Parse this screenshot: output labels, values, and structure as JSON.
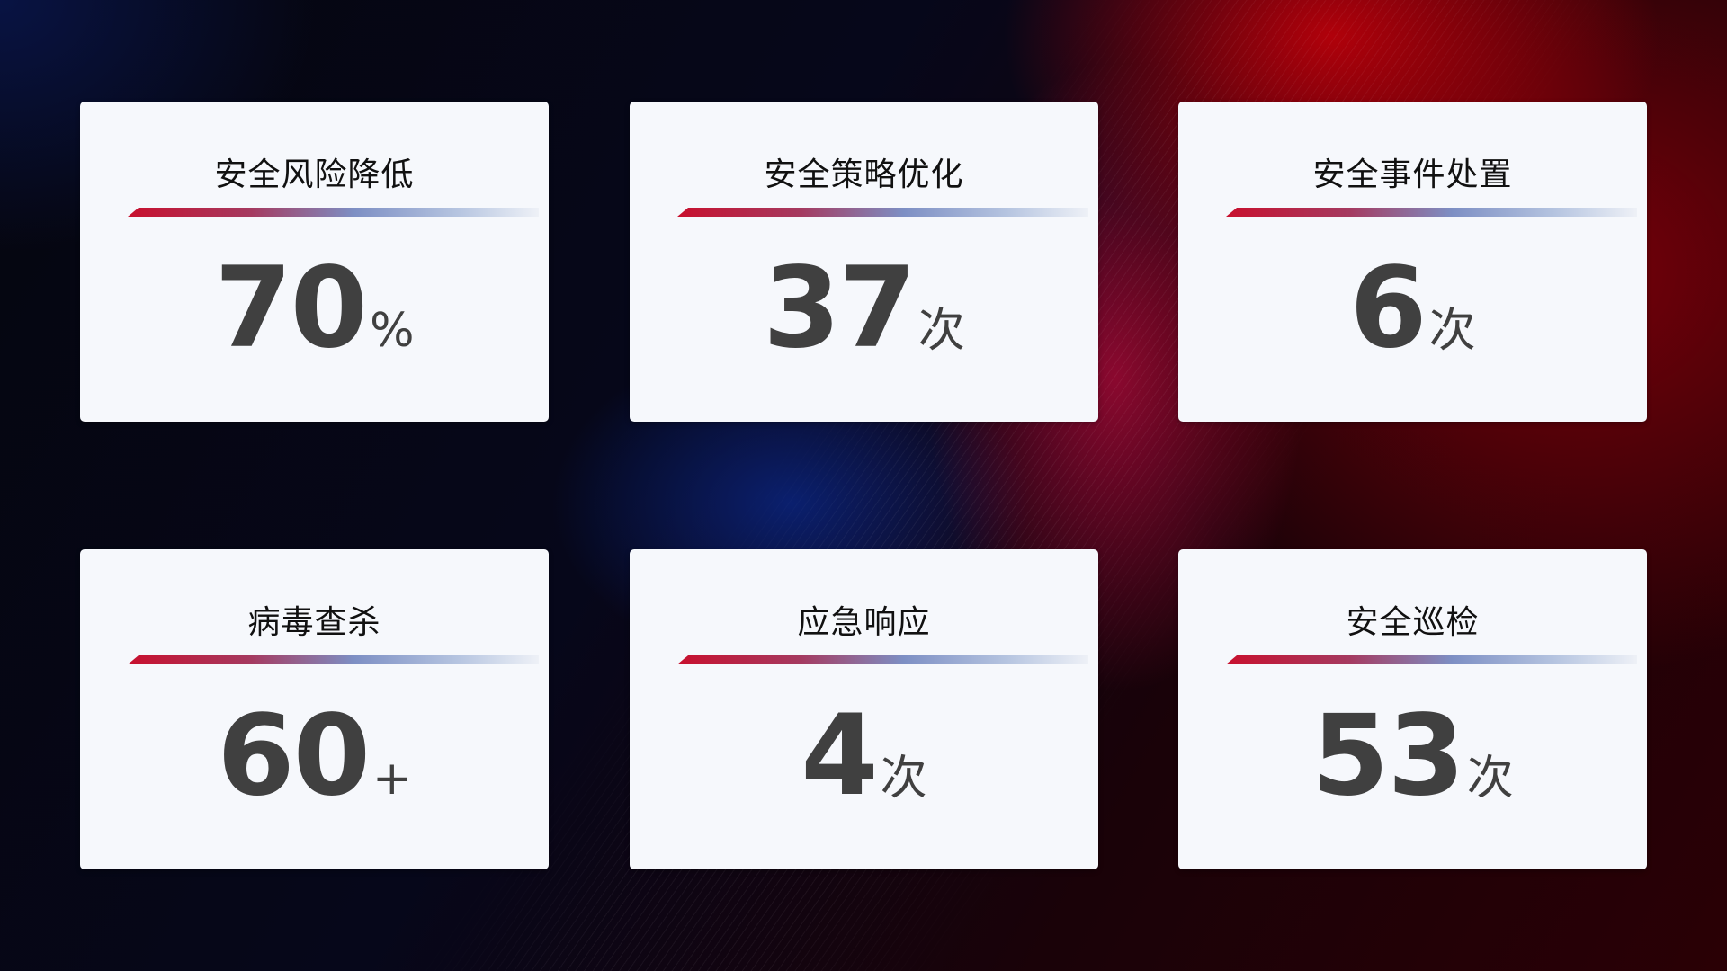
{
  "colors": {
    "accent_red": "#c8102e",
    "accent_blue": "#7d8fc4",
    "card_bg": "#f6f8fc",
    "value_text": "#404040"
  },
  "cards": [
    {
      "title": "安全风险降低",
      "value": "70",
      "unit": "%"
    },
    {
      "title": "安全策略优化",
      "value": "37",
      "unit": "次"
    },
    {
      "title": "安全事件处置",
      "value": "6",
      "unit": "次"
    },
    {
      "title": "病毒查杀",
      "value": "60",
      "unit": "+"
    },
    {
      "title": "应急响应",
      "value": "4",
      "unit": "次"
    },
    {
      "title": "安全巡检",
      "value": "53",
      "unit": "次"
    }
  ]
}
